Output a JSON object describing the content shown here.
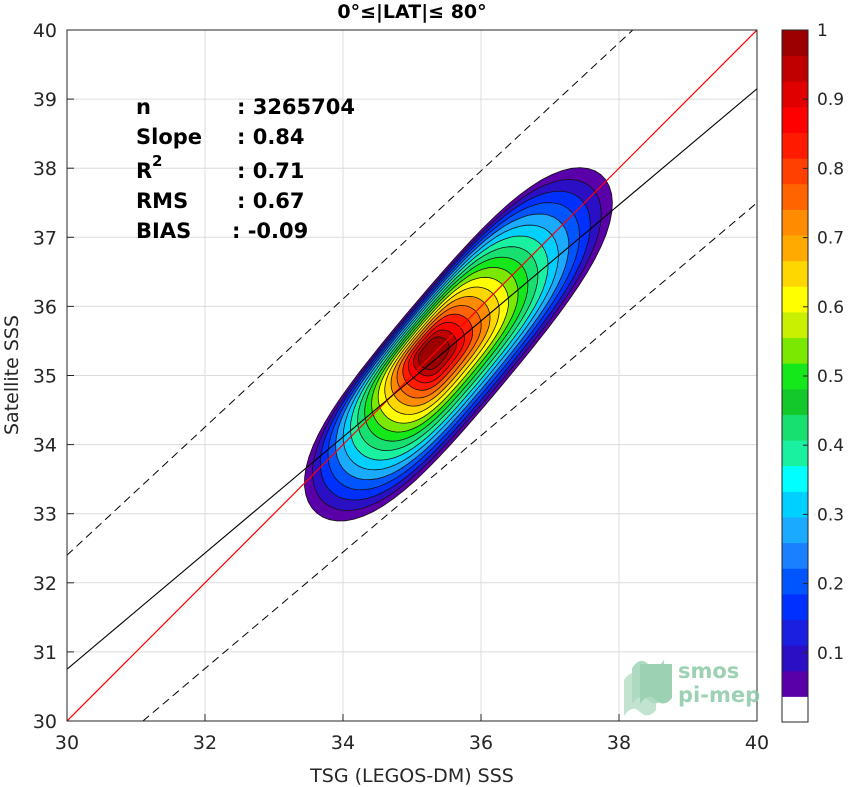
{
  "chart_data": {
    "type": "contour-density",
    "title": "0°≤|LAT|≤ 80°",
    "xlabel": "TSG (LEGOS-DM) SSS",
    "ylabel": "Satellite SSS",
    "xlim": [
      30,
      40
    ],
    "ylim": [
      30,
      40
    ],
    "x_ticks": [
      "30",
      "32",
      "34",
      "36",
      "38",
      "40"
    ],
    "y_ticks": [
      "30",
      "31",
      "32",
      "33",
      "34",
      "35",
      "36",
      "37",
      "38",
      "39",
      "40"
    ],
    "grid": true,
    "stats": [
      {
        "label": "n",
        "value": ": 3265704"
      },
      {
        "label": "Slope",
        "value": ": 0.84"
      },
      {
        "label": "R",
        "sup": "2",
        "value": ": 0.71"
      },
      {
        "label": "RMS",
        "value": ": 0.67"
      },
      {
        "label": "BIAS",
        "value": ": -0.09"
      }
    ],
    "lines": {
      "identity": {
        "color": "#ff0000",
        "slope": 1,
        "intercept": 0
      },
      "regression": {
        "color": "#000000",
        "x1": 30,
        "y1": 30.75,
        "x2": 40,
        "y2": 39.15
      },
      "bounds_offset": 1.1
    },
    "density_peak": {
      "x": 35.2,
      "y": 35.2
    },
    "colorbar": {
      "ticks": [
        "0.1",
        "0.2",
        "0.3",
        "0.4",
        "0.5",
        "0.6",
        "0.7",
        "0.8",
        "0.9",
        "1"
      ],
      "colors": [
        "#ffffff",
        "#5a00a8",
        "#2b0fc4",
        "#1a1fe0",
        "#0030ff",
        "#0055ff",
        "#1a80ff",
        "#1aaaff",
        "#00d0ff",
        "#00ffff",
        "#19f0a0",
        "#18e070",
        "#12c82a",
        "#14e81a",
        "#7ae800",
        "#c8f000",
        "#ffff00",
        "#ffd700",
        "#ffaa00",
        "#ff8c00",
        "#ff6400",
        "#ff4000",
        "#ff1a00",
        "#ff0000",
        "#e00000",
        "#c00000",
        "#9c0000"
      ]
    }
  },
  "logo": {
    "line1": "smos",
    "line2": "pi-mep",
    "color": "#8cc9a8"
  }
}
